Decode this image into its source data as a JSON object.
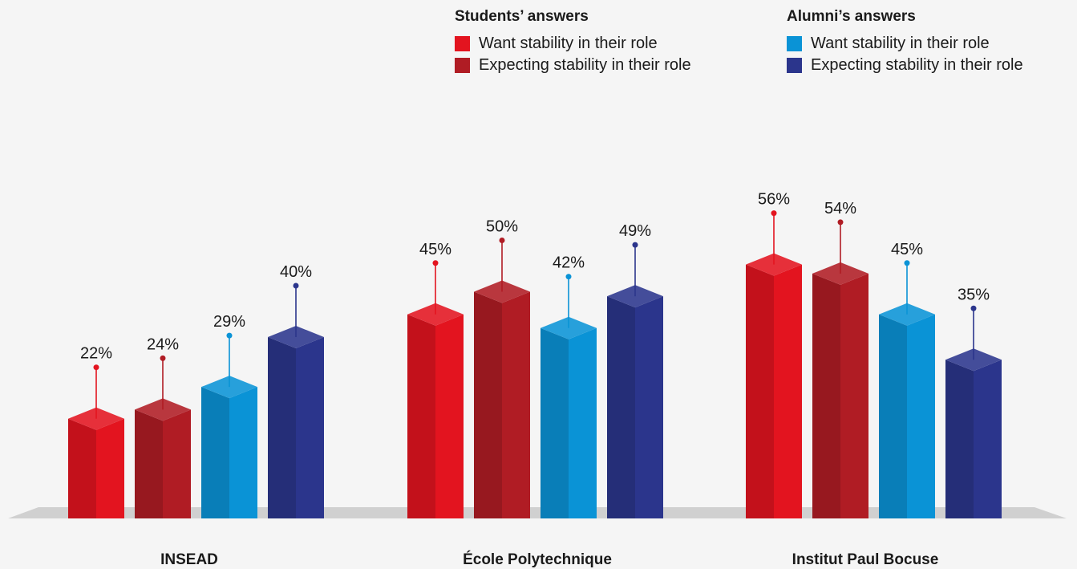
{
  "chart_data": {
    "type": "bar",
    "categories": [
      "INSEAD",
      "École Polytechnique",
      "Institut Paul Bocuse"
    ],
    "series": [
      {
        "name": "Want stability in their role",
        "group": "Students’ answers",
        "color": "#e3141f",
        "values": [
          22,
          45,
          56
        ]
      },
      {
        "name": "Expecting stability in their role",
        "group": "Students’ answers",
        "color": "#b01c24",
        "values": [
          24,
          50,
          54
        ]
      },
      {
        "name": "Want stability in their role",
        "group": "Alumni’s answers",
        "color": "#0a93d6",
        "values": [
          29,
          42,
          45
        ]
      },
      {
        "name": "Expecting stability in their role",
        "group": "Alumni’s answers",
        "color": "#2b358c",
        "values": [
          40,
          49,
          35
        ]
      }
    ],
    "value_suffix": "%",
    "ylim": [
      0,
      60
    ],
    "grid": false,
    "legend_position": "top-right"
  },
  "legend": {
    "students": {
      "title": "Students’ answers",
      "items": [
        {
          "label": "Want stability in their role",
          "color": "#e3141f"
        },
        {
          "label": "Expecting stability in their role",
          "color": "#b01c24"
        }
      ]
    },
    "alumni": {
      "title": "Alumni’s answers",
      "items": [
        {
          "label": "Want stability in their role",
          "color": "#0a93d6"
        },
        {
          "label": "Expecting stability in their role",
          "color": "#2b358c"
        }
      ]
    }
  }
}
